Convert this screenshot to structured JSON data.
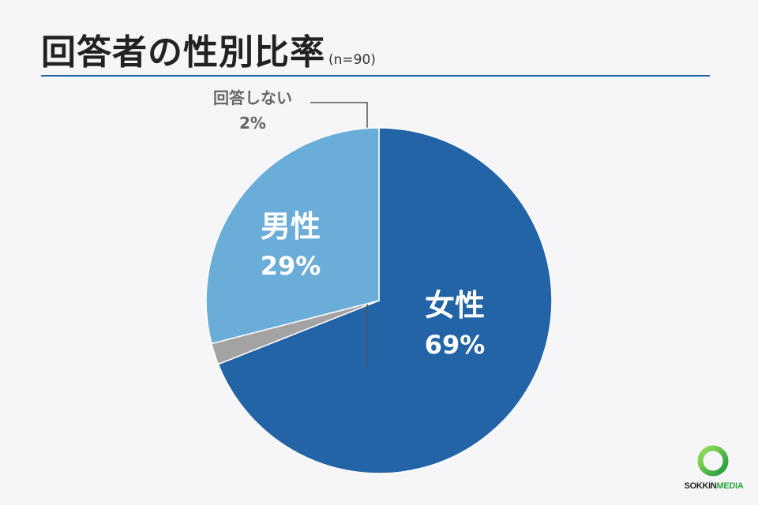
{
  "header": {
    "title": "回答者の性別比率",
    "sample_size": "(n=90)"
  },
  "chart_data": {
    "type": "pie",
    "slices": [
      {
        "label": "女性",
        "value": 69,
        "value_label": "69%",
        "color": "#2264a5"
      },
      {
        "label": "回答しない",
        "value": 2,
        "value_label": "2%",
        "color": "#a3a3a3"
      },
      {
        "label": "男性",
        "value": 29,
        "value_label": "29%",
        "color": "#6badd9"
      }
    ],
    "start": "12 o'clock",
    "direction": "clockwise"
  },
  "brand": {
    "name_part1": "SOKKIN",
    "name_part2": "MEDIA",
    "accent_color": "#2aa838"
  }
}
